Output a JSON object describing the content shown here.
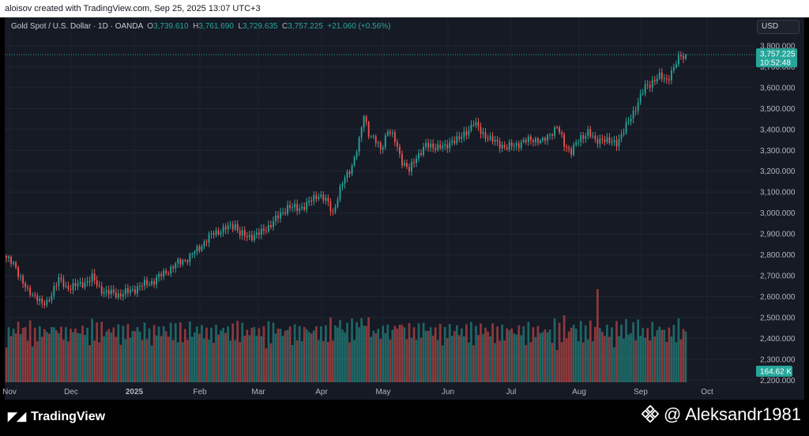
{
  "header": {
    "text": "aloisov created with TradingView.com, Sep 25, 2025 13:07 UTC+3"
  },
  "legend": {
    "symbol": "Gold Spot / U.S. Dollar · 1D · OANDA",
    "o_label": "O",
    "o_value": "3,739.610",
    "h_label": "H",
    "h_value": "3,761.690",
    "l_label": "L",
    "l_value": "3,729.635",
    "c_label": "C",
    "c_value": "3,757.225",
    "change": "+21.060 (+0.56%)"
  },
  "currency": "USD",
  "price_label": {
    "price": "3,757.225",
    "countdown": "10:52:48"
  },
  "volume_label": "164.62 K",
  "footer": {
    "logo": "TradingView",
    "author": "@ Aleksandr1981"
  },
  "colors": {
    "up": "#26a69a",
    "down": "#ef5350",
    "background": "#161a25"
  },
  "chart_data": {
    "type": "candlestick",
    "y_ticks": [
      "2,200.000",
      "2,300.000",
      "2,400.000",
      "2,500.000",
      "2,600.000",
      "2,700.000",
      "2,800.000",
      "2,900.000",
      "3,000.000",
      "3,100.000",
      "3,200.000",
      "3,300.000",
      "3,400.000",
      "3,500.000",
      "3,600.000",
      "3,700.000",
      "3,800.000"
    ],
    "ylim": [
      2190,
      3830
    ],
    "x_ticks": [
      "Nov",
      "Dec",
      "2025",
      "Feb",
      "Mar",
      "Apr",
      "May",
      "Jun",
      "Jul",
      "Aug",
      "Sep",
      "Oct"
    ],
    "price_anchors": [
      [
        0,
        2785
      ],
      [
        4,
        2740
      ],
      [
        9,
        2620
      ],
      [
        13,
        2600
      ],
      [
        15,
        2560
      ],
      [
        17,
        2565
      ],
      [
        20,
        2645
      ],
      [
        22,
        2680
      ],
      [
        25,
        2645
      ],
      [
        31,
        2655
      ],
      [
        36,
        2690
      ],
      [
        39,
        2640
      ],
      [
        42,
        2620
      ],
      [
        47,
        2610
      ],
      [
        52,
        2625
      ],
      [
        56,
        2650
      ],
      [
        61,
        2670
      ],
      [
        66,
        2710
      ],
      [
        72,
        2760
      ],
      [
        77,
        2790
      ],
      [
        83,
        2860
      ],
      [
        87,
        2905
      ],
      [
        91,
        2920
      ],
      [
        96,
        2945
      ],
      [
        98,
        2900
      ],
      [
        101,
        2885
      ],
      [
        107,
        2905
      ],
      [
        114,
        2980
      ],
      [
        118,
        3030
      ],
      [
        122,
        3020
      ],
      [
        126,
        3040
      ],
      [
        131,
        3090
      ],
      [
        134,
        3060
      ],
      [
        137,
        3000
      ],
      [
        139,
        3080
      ],
      [
        141,
        3140
      ],
      [
        145,
        3230
      ],
      [
        148,
        3340
      ],
      [
        150,
        3470
      ],
      [
        152,
        3385
      ],
      [
        155,
        3340
      ],
      [
        157,
        3300
      ],
      [
        160,
        3400
      ],
      [
        163,
        3345
      ],
      [
        166,
        3250
      ],
      [
        169,
        3200
      ],
      [
        172,
        3270
      ],
      [
        176,
        3320
      ],
      [
        180,
        3320
      ],
      [
        184,
        3310
      ],
      [
        187,
        3350
      ],
      [
        190,
        3350
      ],
      [
        193,
        3390
      ],
      [
        196,
        3430
      ],
      [
        199,
        3390
      ],
      [
        203,
        3350
      ],
      [
        207,
        3330
      ],
      [
        210,
        3310
      ],
      [
        213,
        3325
      ],
      [
        217,
        3340
      ],
      [
        221,
        3355
      ],
      [
        225,
        3340
      ],
      [
        228,
        3380
      ],
      [
        231,
        3410
      ],
      [
        234,
        3330
      ],
      [
        237,
        3295
      ],
      [
        241,
        3360
      ],
      [
        244,
        3390
      ],
      [
        247,
        3340
      ],
      [
        250,
        3360
      ],
      [
        253,
        3335
      ],
      [
        256,
        3340
      ],
      [
        259,
        3390
      ],
      [
        262,
        3460
      ],
      [
        265,
        3530
      ],
      [
        268,
        3600
      ],
      [
        271,
        3630
      ],
      [
        274,
        3650
      ],
      [
        277,
        3640
      ],
      [
        280,
        3690
      ],
      [
        283,
        3760
      ],
      [
        285,
        3740
      ]
    ],
    "last": {
      "open": 3739.61,
      "high": 3761.69,
      "low": 3729.635,
      "close": 3757.225
    },
    "volume_max_k": 420
  }
}
